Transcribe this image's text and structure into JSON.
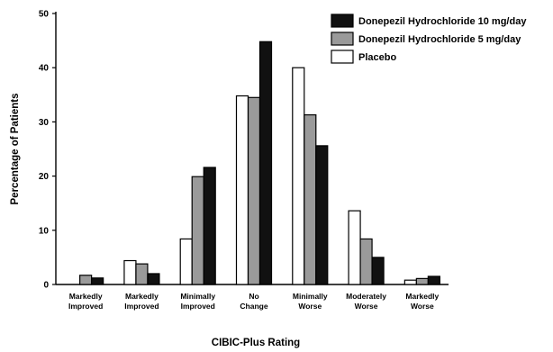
{
  "chart_data": {
    "type": "bar",
    "title": "",
    "xlabel": "CIBIC-Plus Rating",
    "ylabel": "Percentage of Patients",
    "ylim": [
      0,
      50
    ],
    "yticks": [
      0,
      10,
      20,
      30,
      40,
      50
    ],
    "categories": [
      [
        "Markedly",
        "Improved"
      ],
      [
        "Markedly",
        "Improved"
      ],
      [
        "Minimally",
        "Improved"
      ],
      [
        "No",
        "Change"
      ],
      [
        "Minimally",
        "Worse"
      ],
      [
        "Moderately",
        "Worse"
      ],
      [
        "Markedly",
        "Worse"
      ]
    ],
    "series": [
      {
        "name": "Placebo",
        "color": "#ffffff",
        "values": [
          0,
          4.4,
          8.4,
          34.8,
          40.0,
          13.6,
          0.8
        ]
      },
      {
        "name": "Donepezil Hydrochloride 5 mg/day",
        "color": "#9a9a9a",
        "values": [
          1.7,
          3.8,
          19.9,
          34.5,
          31.3,
          8.4,
          1.1
        ]
      },
      {
        "name": "Donepezil Hydrochloride 10 mg/day",
        "color": "#111111",
        "values": [
          1.2,
          2.0,
          21.6,
          44.8,
          25.6,
          5.0,
          1.5
        ]
      }
    ],
    "legend": {
      "position": "top-right",
      "order": [
        "Donepezil Hydrochloride 10 mg/day",
        "Donepezil Hydrochloride 5 mg/day",
        "Placebo"
      ]
    },
    "grid": false
  }
}
